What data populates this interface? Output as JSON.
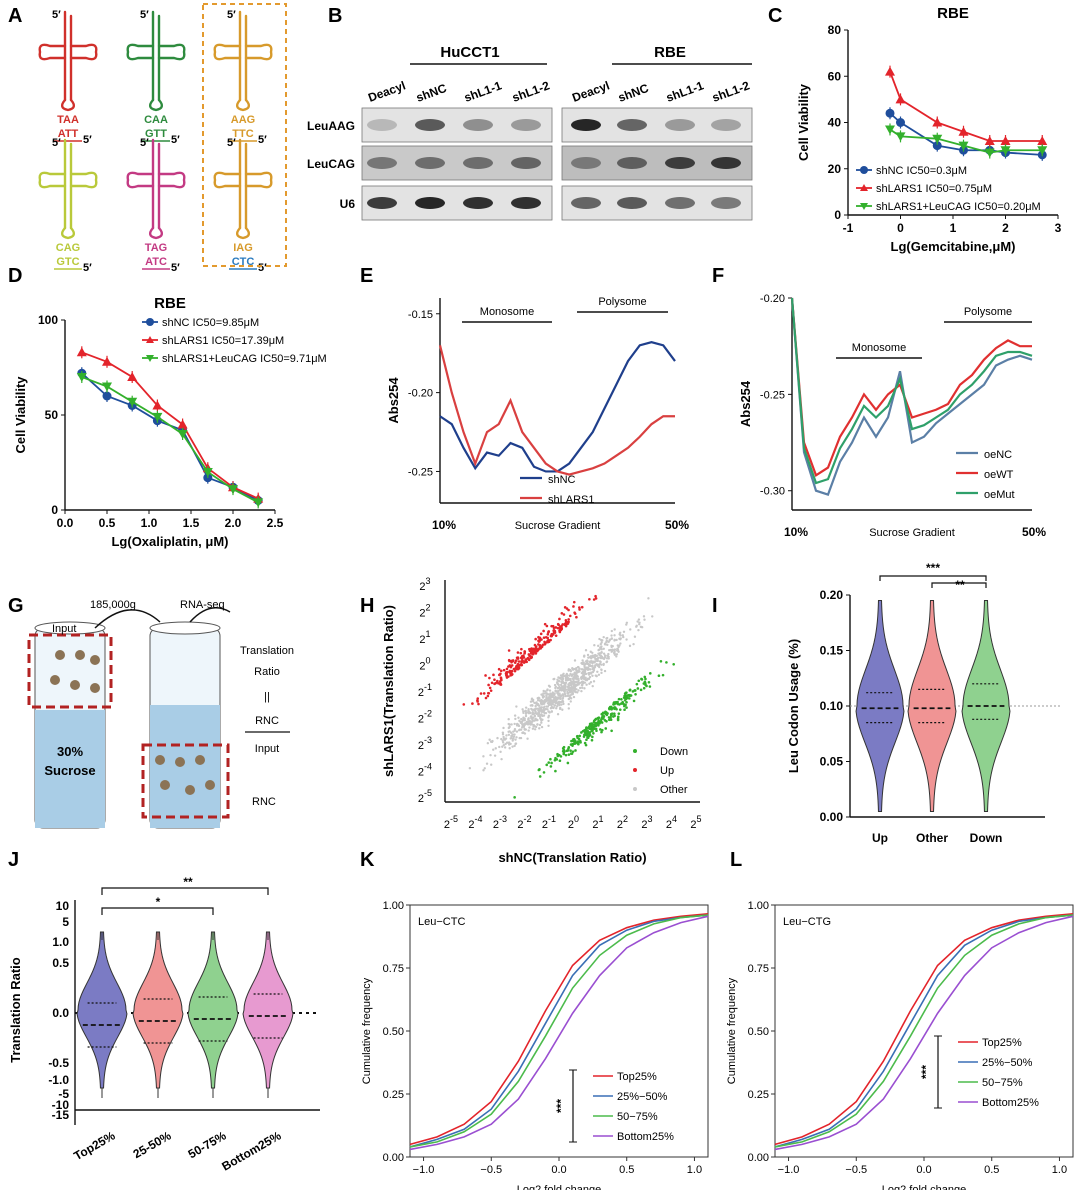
{
  "colors": {
    "red": "#d62728",
    "blue": "#1f4e9c",
    "green": "#33a02c",
    "orange": "#e39a2e",
    "violet": "#7b7bbf",
    "pink": "#f08080",
    "lightgreen": "#8fd18f",
    "magenta": "#c94fa0"
  },
  "panels": [
    "A",
    "B",
    "C",
    "D",
    "E",
    "F",
    "G",
    "H",
    "I",
    "J",
    "K",
    "L"
  ],
  "panel_a": {
    "trnas": [
      {
        "codon": "TAA",
        "anticodon": "ATT",
        "color": "#d0302b"
      },
      {
        "codon": "CAA",
        "anticodon": "GTT",
        "color": "#2e8b3e"
      },
      {
        "codon": "AAG",
        "anticodon": "TTC",
        "color": "#d79a2b"
      },
      {
        "codon": "CAG",
        "anticodon": "GTC",
        "color": "#b9c93a"
      },
      {
        "codon": "TAG",
        "anticodon": "ATC",
        "color": "#c33a83"
      },
      {
        "codon": "IAG",
        "anticodon": "CTC",
        "color": "#d79a2b",
        "anticodon_color": "#2b7bbf"
      }
    ],
    "five_prime": "5′"
  },
  "panel_b": {
    "groups": [
      "HuCCT1",
      "RBE"
    ],
    "lanes": [
      "Deacyl",
      "shNC",
      "shL1-1",
      "shL1-2",
      "Deacyl",
      "shNC",
      "shL1-1",
      "shL1-2"
    ],
    "rows": [
      "LeuAAG",
      "LeuCAG",
      "U6"
    ]
  },
  "chart_data": [
    {
      "panel": "C",
      "type": "line",
      "title": "RBE",
      "xlabel": "Lg(Gemcitabine,μM)",
      "ylabel": "Cell Viability",
      "xlim": [
        -1,
        3
      ],
      "ylim": [
        0,
        80
      ],
      "xticks": [
        "-1",
        "0",
        "1",
        "2",
        "3"
      ],
      "yticks": [
        "0",
        "20",
        "40",
        "60",
        "80"
      ],
      "legend": [
        "shNC IC50=0.3μM",
        "shLARS1 IC50=0.75μM",
        "shLARS1+LeuCAG IC50=0.20μM"
      ],
      "x": [
        -0.2,
        0,
        0.7,
        1.2,
        1.7,
        2.0,
        2.7
      ],
      "series": [
        {
          "name": "shNC IC50=0.3μM",
          "values": [
            44,
            40,
            30,
            28,
            28,
            27,
            26
          ]
        },
        {
          "name": "shLARS1 IC50=0.75μM",
          "values": [
            62,
            50,
            40,
            36,
            32,
            32,
            32
          ]
        },
        {
          "name": "shLARS1+LeuCAG IC50=0.20μM",
          "values": [
            37,
            34,
            33,
            30,
            27,
            28,
            28
          ]
        }
      ]
    },
    {
      "panel": "D",
      "type": "line",
      "title": "RBE",
      "xlabel": "Lg(Oxaliplatin, μM)",
      "ylabel": "Cell Viability",
      "xlim": [
        0,
        2.5
      ],
      "ylim": [
        0,
        100
      ],
      "xticks": [
        "0.0",
        "0.5",
        "1.0",
        "1.5",
        "2.0",
        "2.5"
      ],
      "yticks": [
        "0",
        "50",
        "100"
      ],
      "legend": [
        "shNC IC50=9.85μM",
        "shLARS1 IC50=17.39μM",
        "shLARS1+LeuCAG IC50=9.71μM"
      ],
      "x": [
        0.2,
        0.5,
        0.8,
        1.1,
        1.4,
        1.7,
        2.0,
        2.3
      ],
      "series": [
        {
          "name": "shNC IC50=9.85μM",
          "values": [
            72,
            60,
            55,
            47,
            42,
            17,
            12,
            5
          ]
        },
        {
          "name": "shLARS1 IC50=17.39μM",
          "values": [
            83,
            78,
            70,
            55,
            45,
            22,
            12,
            6
          ]
        },
        {
          "name": "shLARS1+LeuCAG IC50=9.71μM",
          "values": [
            70,
            65,
            57,
            49,
            40,
            20,
            11,
            4
          ]
        }
      ]
    },
    {
      "panel": "E",
      "type": "line",
      "ylabel": "Abs254",
      "xlabel": "Sucrose Gradient",
      "ylim": [
        -0.27,
        -0.14
      ],
      "yticks": [
        "-0.15",
        "-0.20",
        "-0.25"
      ],
      "x_start_label": "10%",
      "x_end_label": "50%",
      "brackets": [
        "Monosome",
        "Polysome"
      ],
      "x": [
        0,
        0.05,
        0.1,
        0.15,
        0.2,
        0.25,
        0.3,
        0.35,
        0.4,
        0.45,
        0.5,
        0.55,
        0.6,
        0.65,
        0.7,
        0.75,
        0.8,
        0.85,
        0.9,
        0.95,
        1.0
      ],
      "series": [
        {
          "name": "shNC",
          "values": [
            -0.215,
            -0.22,
            -0.235,
            -0.248,
            -0.238,
            -0.24,
            -0.232,
            -0.235,
            -0.247,
            -0.25,
            -0.25,
            -0.245,
            -0.235,
            -0.225,
            -0.21,
            -0.195,
            -0.18,
            -0.17,
            -0.168,
            -0.17,
            -0.18
          ]
        },
        {
          "name": "shLARS1",
          "values": [
            -0.17,
            -0.2,
            -0.225,
            -0.245,
            -0.225,
            -0.22,
            -0.205,
            -0.225,
            -0.235,
            -0.245,
            -0.25,
            -0.252,
            -0.25,
            -0.248,
            -0.245,
            -0.24,
            -0.235,
            -0.228,
            -0.22,
            -0.215,
            -0.215
          ]
        }
      ]
    },
    {
      "panel": "F",
      "type": "line",
      "ylabel": "Abs254",
      "xlabel": "Sucrose Gradient",
      "ylim": [
        -0.31,
        -0.2
      ],
      "yticks": [
        "-0.20",
        "-0.25",
        "-0.30"
      ],
      "x_start_label": "10%",
      "x_end_label": "50%",
      "brackets": [
        "Monosome",
        "Polysome"
      ],
      "x": [
        0,
        0.05,
        0.1,
        0.15,
        0.2,
        0.25,
        0.3,
        0.35,
        0.4,
        0.45,
        0.5,
        0.55,
        0.6,
        0.65,
        0.7,
        0.75,
        0.8,
        0.85,
        0.9,
        0.95,
        1.0
      ],
      "series": [
        {
          "name": "oeNC",
          "values": [
            -0.2,
            -0.28,
            -0.3,
            -0.302,
            -0.285,
            -0.275,
            -0.262,
            -0.272,
            -0.262,
            -0.238,
            -0.275,
            -0.272,
            -0.265,
            -0.26,
            -0.255,
            -0.25,
            -0.245,
            -0.235,
            -0.232,
            -0.23,
            -0.232
          ]
        },
        {
          "name": "oeWT",
          "values": [
            -0.2,
            -0.275,
            -0.292,
            -0.288,
            -0.272,
            -0.262,
            -0.25,
            -0.258,
            -0.25,
            -0.245,
            -0.262,
            -0.26,
            -0.258,
            -0.255,
            -0.245,
            -0.24,
            -0.232,
            -0.226,
            -0.222,
            -0.225,
            -0.225
          ]
        },
        {
          "name": "oeMut",
          "values": [
            -0.2,
            -0.278,
            -0.296,
            -0.294,
            -0.278,
            -0.268,
            -0.256,
            -0.262,
            -0.256,
            -0.242,
            -0.268,
            -0.266,
            -0.262,
            -0.258,
            -0.25,
            -0.245,
            -0.238,
            -0.23,
            -0.228,
            -0.228,
            -0.23
          ]
        }
      ]
    },
    {
      "panel": "H",
      "type": "scatter",
      "xlabel": "shNC(Translation Ratio)",
      "ylabel": "shLARS1(Translation Ratio)",
      "ticks": [
        "2-5",
        "2-4",
        "2-3",
        "2-2",
        "2-1",
        "20",
        "21",
        "22",
        "23",
        "24",
        "25"
      ],
      "xtick_base": "2",
      "xtick_exp": [
        "-5",
        "-4",
        "-3",
        "-2",
        "-1",
        "0",
        "1",
        "2",
        "3",
        "4",
        "5"
      ],
      "ytick_exp": [
        "3",
        "2",
        "1",
        "0",
        "-1",
        "-2",
        "-3",
        "-4",
        "-5"
      ],
      "legend": [
        "Down",
        "Up",
        "Other"
      ],
      "series_colors": {
        "Down": "#33b02c",
        "Up": "#e3242b",
        "Other": "#c8c8c8"
      }
    },
    {
      "panel": "I",
      "type": "violin",
      "ylabel": "Leu Codon Usage (%)",
      "ylim": [
        0,
        0.2
      ],
      "yticks": [
        "0.00",
        "0.05",
        "0.10",
        "0.15",
        "0.20"
      ],
      "categories": [
        "Up",
        "Other",
        "Down"
      ],
      "medians": [
        0.098,
        0.098,
        0.1
      ],
      "quartiles": [
        [
          0.085,
          0.112
        ],
        [
          0.085,
          0.115
        ],
        [
          0.088,
          0.12
        ]
      ],
      "significance": [
        "***",
        "**"
      ]
    },
    {
      "panel": "J",
      "type": "violin",
      "ylabel": "Translation Ratio",
      "yticks_upper": [
        "10",
        "5",
        "1.0"
      ],
      "yticks_mid": [
        "0.5",
        "0.0",
        "-0.5",
        "-1.0"
      ],
      "yticks_lower": [
        "-5",
        "-10",
        "-15"
      ],
      "categories": [
        "Top25%",
        "25-50%",
        "50-75%",
        "Bottom25%"
      ],
      "medians": [
        -0.12,
        -0.08,
        -0.06,
        -0.03
      ],
      "significance": [
        "*",
        "**"
      ]
    },
    {
      "panel": "K",
      "type": "line",
      "title": "Leu−CTC",
      "xlabel": "Log2 fold change",
      "ylabel": "Cumulative frequency",
      "xlim": [
        -1.1,
        1.1
      ],
      "ylim": [
        0,
        1
      ],
      "xticks": [
        "−1.0",
        "−0.5",
        "0.0",
        "0.5",
        "1.0"
      ],
      "yticks": [
        "0.00",
        "0.25",
        "0.50",
        "0.75",
        "1.00"
      ],
      "legend": [
        "Top25%",
        "25%−50%",
        "50−75%",
        "Bottom25%"
      ],
      "significance": "***",
      "x": [
        -1.1,
        -0.9,
        -0.7,
        -0.5,
        -0.3,
        -0.1,
        0.1,
        0.3,
        0.5,
        0.7,
        0.9,
        1.1
      ],
      "series": [
        {
          "name": "Top25%",
          "values": [
            0.05,
            0.08,
            0.13,
            0.22,
            0.38,
            0.58,
            0.76,
            0.86,
            0.91,
            0.94,
            0.955,
            0.965
          ]
        },
        {
          "name": "25%−50%",
          "values": [
            0.04,
            0.07,
            0.11,
            0.19,
            0.34,
            0.53,
            0.72,
            0.84,
            0.9,
            0.935,
            0.95,
            0.96
          ]
        },
        {
          "name": "50−75%",
          "values": [
            0.04,
            0.06,
            0.1,
            0.17,
            0.3,
            0.48,
            0.67,
            0.8,
            0.88,
            0.925,
            0.95,
            0.96
          ]
        },
        {
          "name": "Bottom25%",
          "values": [
            0.03,
            0.05,
            0.08,
            0.13,
            0.23,
            0.39,
            0.57,
            0.72,
            0.83,
            0.89,
            0.93,
            0.955
          ]
        }
      ]
    },
    {
      "panel": "L",
      "type": "line",
      "title": "Leu−CTG",
      "xlabel": "Log2 fold change",
      "ylabel": "Cumulative frequency",
      "xlim": [
        -1.1,
        1.1
      ],
      "ylim": [
        0,
        1
      ],
      "xticks": [
        "−1.0",
        "−0.5",
        "0.0",
        "0.5",
        "1.0"
      ],
      "yticks": [
        "0.00",
        "0.25",
        "0.50",
        "0.75",
        "1.00"
      ],
      "legend": [
        "Top25%",
        "25%−50%",
        "50−75%",
        "Bottom25%"
      ],
      "significance": "***",
      "x": [
        -1.1,
        -0.9,
        -0.7,
        -0.5,
        -0.3,
        -0.1,
        0.1,
        0.3,
        0.5,
        0.7,
        0.9,
        1.1
      ],
      "series": [
        {
          "name": "Top25%",
          "values": [
            0.05,
            0.08,
            0.13,
            0.22,
            0.38,
            0.58,
            0.76,
            0.86,
            0.91,
            0.94,
            0.955,
            0.965
          ]
        },
        {
          "name": "25%−50%",
          "values": [
            0.04,
            0.07,
            0.11,
            0.19,
            0.34,
            0.53,
            0.72,
            0.84,
            0.9,
            0.935,
            0.95,
            0.96
          ]
        },
        {
          "name": "50−75%",
          "values": [
            0.04,
            0.06,
            0.1,
            0.17,
            0.3,
            0.48,
            0.67,
            0.8,
            0.88,
            0.925,
            0.95,
            0.96
          ]
        },
        {
          "name": "Bottom25%",
          "values": [
            0.03,
            0.05,
            0.08,
            0.13,
            0.23,
            0.39,
            0.57,
            0.72,
            0.83,
            0.89,
            0.93,
            0.955
          ]
        }
      ]
    }
  ],
  "panel_g": {
    "centrifuge": "185,000g",
    "rnaseq": "RNA-seq",
    "input": "Input",
    "sucrose": "30%",
    "sucrose2": "Sucrose",
    "translation": "Translation",
    "ratio": "Ratio",
    "equals": "||",
    "rnc": "RNC",
    "input2": "Input",
    "rnc_label": "RNC"
  }
}
